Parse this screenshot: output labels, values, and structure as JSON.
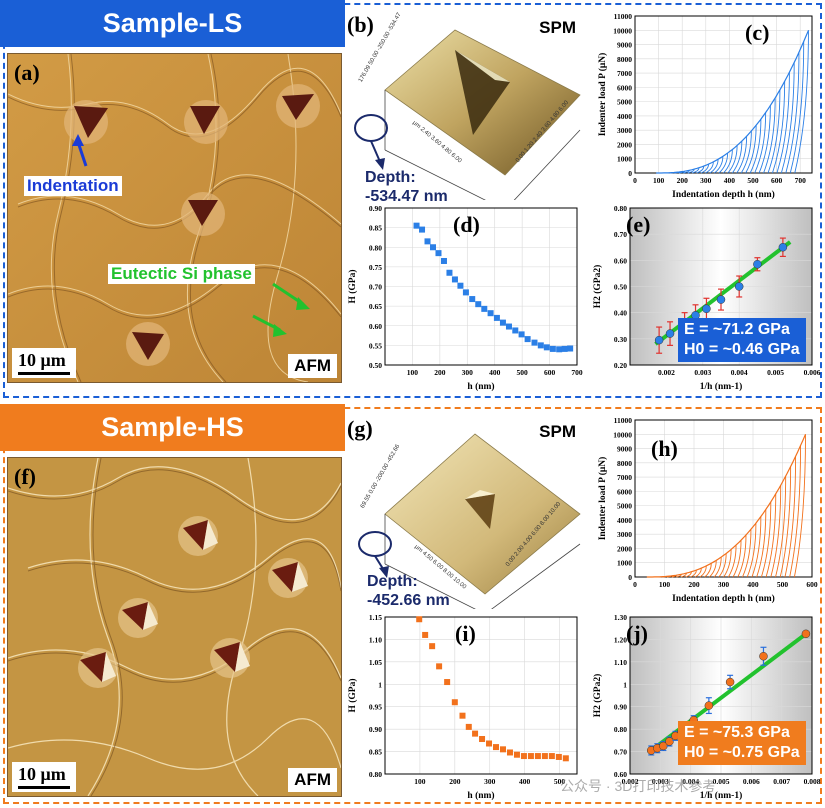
{
  "colors": {
    "ls": "#1a5fd6",
    "hs": "#f07c1e",
    "ls_mark": "#2b7fe6",
    "hs_mark": "#f2711c",
    "fit": "#22c22e",
    "err_ls": "#e0322e",
    "err_hs": "#2a6fdc",
    "afm_bg": "#c8923e"
  },
  "ls": {
    "banner": "Sample-LS",
    "afm": {
      "label": "(a)",
      "scale": "10 μm",
      "tag": "AFM",
      "ann_indent": "Indentation",
      "ann_si": "Eutectic Si phase"
    },
    "spm": {
      "label": "(b)",
      "title": "SPM",
      "depth_label": "Depth:",
      "depth_value": "-534.47 nm",
      "z_ticks": [
        "176.09",
        "50.00",
        "-250.00",
        "-534.47"
      ],
      "x_ticks": [
        "0.00",
        "1.20",
        "2.40",
        "3.60",
        "4.80",
        "6.00"
      ],
      "y_ticks": [
        "2.40",
        "3.60",
        "4.80",
        "6.00"
      ],
      "unit": "μm"
    },
    "panel_c": {
      "label": "(c)"
    },
    "panel_d": {
      "label": "(d)"
    },
    "panel_e": {
      "label": "(e)",
      "legend_e": "E = ~71.2 GPa",
      "legend_h0": "H0 = ~0.46 GPa"
    }
  },
  "hs": {
    "banner": "Sample-HS",
    "afm": {
      "label": "(f)",
      "scale": "10 μm",
      "tag": "AFM"
    },
    "spm": {
      "label": "(g)",
      "title": "SPM",
      "depth_label": "Depth:",
      "depth_value": "-452.66 nm",
      "z_ticks": [
        "69.55",
        "0.00",
        "-200.00",
        "-452.66"
      ],
      "x_ticks": [
        "0.00",
        "2.00",
        "4.00",
        "6.00",
        "8.00",
        "10.00"
      ],
      "y_ticks": [
        "4.50",
        "6.00",
        "8.00",
        "10.00"
      ],
      "unit": "μm"
    },
    "panel_h": {
      "label": "(h)"
    },
    "panel_i": {
      "label": "(i)"
    },
    "panel_j": {
      "label": "(j)",
      "legend_e": "E = ~75.3 GPa",
      "legend_h0": "H0 = ~0.75 GPa"
    }
  },
  "watermark": "公众号 · 3D打印技术参考",
  "chart_data": [
    {
      "id": "c",
      "type": "line",
      "title": "",
      "xlabel": "Indentation depth h (nm)",
      "ylabel": "Indenter load P (μN)",
      "xlim": [
        0,
        750
      ],
      "ylim": [
        0,
        11000
      ],
      "xticks": [
        0,
        100,
        200,
        300,
        400,
        500,
        600,
        700
      ],
      "yticks": [
        0,
        1000,
        2000,
        3000,
        4000,
        5000,
        6000,
        7000,
        8000,
        9000,
        10000,
        11000
      ],
      "envelope": {
        "h_start": 90,
        "h_end": 735,
        "p_end": 10000,
        "exponent": 2.6
      },
      "unloading_cycles": 32,
      "unload_drop": 0.09,
      "color": "#2b7fe6"
    },
    {
      "id": "d",
      "type": "scatter",
      "title": "",
      "xlabel": "h (nm)",
      "ylabel": "H (GPa)",
      "xlim": [
        0,
        700
      ],
      "ylim": [
        0.5,
        0.9
      ],
      "xticks": [
        100,
        200,
        300,
        400,
        500,
        600,
        700
      ],
      "yticks": [
        0.5,
        0.55,
        0.6,
        0.65,
        0.7,
        0.75,
        0.8,
        0.85,
        0.9
      ],
      "x": [
        115,
        135,
        155,
        175,
        195,
        215,
        235,
        255,
        275,
        295,
        318,
        340,
        362,
        385,
        408,
        430,
        452,
        475,
        498,
        520,
        545,
        568,
        590,
        612,
        635,
        655,
        675
      ],
      "y": [
        0.855,
        0.845,
        0.815,
        0.8,
        0.785,
        0.765,
        0.735,
        0.718,
        0.702,
        0.685,
        0.668,
        0.655,
        0.643,
        0.632,
        0.62,
        0.608,
        0.598,
        0.588,
        0.578,
        0.566,
        0.557,
        0.55,
        0.545,
        0.541,
        0.54,
        0.541,
        0.542
      ],
      "color": "#2b7fe6"
    },
    {
      "id": "e",
      "type": "scatter",
      "title": "",
      "xlabel": "1/h (nm-1)",
      "ylabel": "H2 (GPa2)",
      "xlim": [
        0.001,
        0.006
      ],
      "ylim": [
        0.2,
        0.8
      ],
      "xticks": [
        0.002,
        0.003,
        0.004,
        0.005,
        0.006
      ],
      "yticks": [
        0.2,
        0.3,
        0.4,
        0.5,
        0.6,
        0.7,
        0.8
      ],
      "x": [
        0.0018,
        0.0021,
        0.0025,
        0.0028,
        0.0031,
        0.0035,
        0.004,
        0.0045,
        0.0052
      ],
      "y": [
        0.295,
        0.32,
        0.36,
        0.39,
        0.415,
        0.45,
        0.5,
        0.585,
        0.65
      ],
      "err": [
        0.05,
        0.045,
        0.04,
        0.04,
        0.04,
        0.04,
        0.04,
        0.025,
        0.035
      ],
      "fit": {
        "x": [
          0.0017,
          0.0054
        ],
        "y": [
          0.28,
          0.67
        ]
      },
      "color": "#2b7fe6",
      "err_color": "#e0322e"
    },
    {
      "id": "h",
      "type": "line",
      "title": "",
      "xlabel": "Indentation depth h (nm)",
      "ylabel": "Indenter load P (μN)",
      "xlim": [
        0,
        600
      ],
      "ylim": [
        0,
        11000
      ],
      "xticks": [
        0,
        100,
        200,
        300,
        400,
        500,
        600
      ],
      "yticks": [
        0,
        1000,
        2000,
        3000,
        4000,
        5000,
        6000,
        7000,
        8000,
        9000,
        10000,
        11000
      ],
      "envelope": {
        "h_start": 40,
        "h_end": 578,
        "p_end": 10000,
        "exponent": 2.6
      },
      "unloading_cycles": 32,
      "unload_drop": 0.07,
      "color": "#f2711c"
    },
    {
      "id": "i",
      "type": "scatter",
      "title": "",
      "xlabel": "h (nm)",
      "ylabel": "H (GPa)",
      "xlim": [
        0,
        550
      ],
      "ylim": [
        0.8,
        1.15
      ],
      "xticks": [
        100,
        200,
        300,
        400,
        500
      ],
      "yticks": [
        0.8,
        0.85,
        0.9,
        0.95,
        1.0,
        1.05,
        1.1,
        1.15
      ],
      "x": [
        98,
        115,
        135,
        155,
        178,
        200,
        222,
        240,
        258,
        278,
        298,
        318,
        338,
        358,
        378,
        398,
        418,
        438,
        458,
        478,
        498,
        518
      ],
      "y": [
        1.145,
        1.11,
        1.085,
        1.04,
        1.005,
        0.96,
        0.93,
        0.905,
        0.89,
        0.878,
        0.868,
        0.86,
        0.855,
        0.848,
        0.843,
        0.84,
        0.84,
        0.84,
        0.84,
        0.84,
        0.838,
        0.835
      ],
      "color": "#f2711c"
    },
    {
      "id": "j",
      "type": "scatter",
      "title": "",
      "xlabel": "1/h (nm-1)",
      "ylabel": "H2 (GPa2)",
      "xlim": [
        0.002,
        0.008
      ],
      "ylim": [
        0.6,
        1.3
      ],
      "xticks": [
        0.002,
        0.003,
        0.004,
        0.005,
        0.006,
        0.007,
        0.008
      ],
      "yticks": [
        0.6,
        0.7,
        0.8,
        0.9,
        1.0,
        1.1,
        1.2,
        1.3
      ],
      "x": [
        0.0027,
        0.0029,
        0.0031,
        0.0033,
        0.0035,
        0.0037,
        0.0039,
        0.0041,
        0.0046,
        0.0053,
        0.0064,
        0.0078
      ],
      "y": [
        0.705,
        0.715,
        0.725,
        0.745,
        0.77,
        0.79,
        0.81,
        0.84,
        0.905,
        1.01,
        1.125,
        1.225
      ],
      "err": [
        0.02,
        0.02,
        0.02,
        0.02,
        0.02,
        0.02,
        0.02,
        0.02,
        0.035,
        0.03,
        0.04,
        0.01
      ],
      "fit": {
        "x": [
          0.0026,
          0.0079
        ],
        "y": [
          0.695,
          1.235
        ]
      },
      "color": "#f2711c",
      "err_color": "#2a6fdc"
    }
  ]
}
